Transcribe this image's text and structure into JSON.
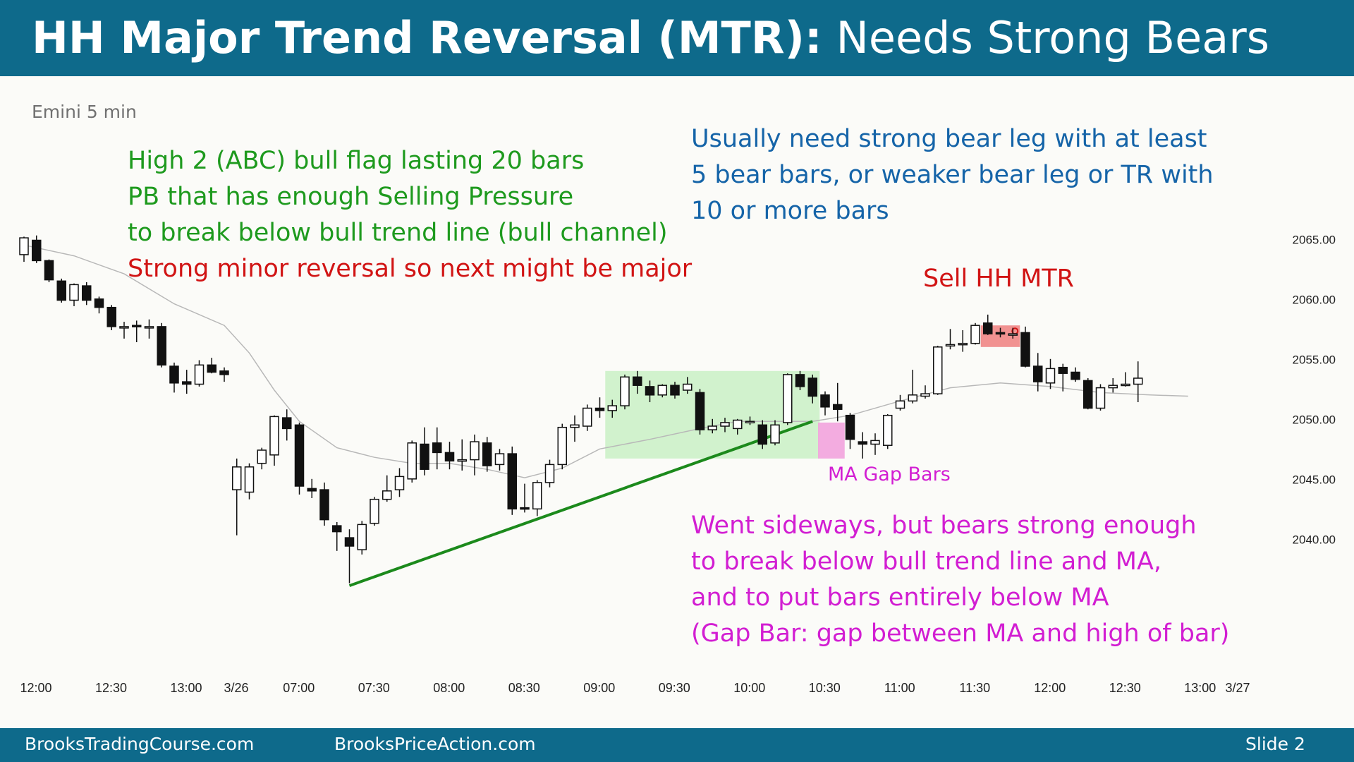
{
  "slide": {
    "title_bold": "HH Major Trend Reversal (MTR):",
    "title_rest": " Needs Strong Bears",
    "footer_left": "BrooksTradingCourse.com",
    "footer_mid": "BrooksPriceAction.com",
    "footer_right": "Slide  2",
    "colors": {
      "header": "#0e6a8b",
      "green_note": "#1e9a1e",
      "red_note": "#d11414",
      "blue_note": "#1564a8",
      "magenta_note": "#d21ed2"
    }
  },
  "annotations": {
    "green_lines": [
      "High 2 (ABC) bull flag lasting 20 bars",
      "PB that has enough Selling Pressure",
      "to break below bull trend line (bull channel)"
    ],
    "red_line": "Strong minor reversal so next might be major",
    "blue_lines": [
      "Usually need strong bear leg with at least",
      "5 bear bars, or weaker bear leg or TR with",
      "10 or more bars"
    ],
    "sell_label": "Sell HH MTR",
    "gap_label": "MA Gap Bars",
    "magenta_lines": [
      "Went sideways, but bears strong enough",
      "to break below bull trend line and MA,",
      "and to put bars entirely below MA",
      "(Gap Bar: gap between MA and high of bar)"
    ]
  },
  "chart_data": {
    "type": "candlestick",
    "title": "Emini 5 min",
    "ylim": [
      2035.5,
      2067.5
    ],
    "y_ticks": [
      2040,
      2045,
      2050,
      2055,
      2060,
      2065
    ],
    "y_tick_labels": [
      "2040.00",
      "2045.00",
      "2050.00",
      "2055.00",
      "2060.00",
      "2065.00"
    ],
    "x_tick_labels": [
      {
        "bar": 0,
        "label": "12:00"
      },
      {
        "bar": 6,
        "label": "12:30"
      },
      {
        "bar": 12,
        "label": "13:00"
      },
      {
        "bar": 16,
        "label": "3/26"
      },
      {
        "bar": 21,
        "label": "07:00"
      },
      {
        "bar": 27,
        "label": "07:30"
      },
      {
        "bar": 33,
        "label": "08:00"
      },
      {
        "bar": 39,
        "label": "08:30"
      },
      {
        "bar": 45,
        "label": "09:00"
      },
      {
        "bar": 51,
        "label": "09:30"
      },
      {
        "bar": 57,
        "label": "10:00"
      },
      {
        "bar": 63,
        "label": "10:30"
      },
      {
        "bar": 69,
        "label": "11:00"
      },
      {
        "bar": 75,
        "label": "11:30"
      },
      {
        "bar": 81,
        "label": "12:00"
      },
      {
        "bar": 87,
        "label": "12:30"
      },
      {
        "bar": 93,
        "label": "13:00"
      },
      {
        "bar": 96,
        "label": "3/27"
      }
    ],
    "bars_ohlc": [
      [
        2063.8,
        2065.3,
        2063.2,
        2065.2
      ],
      [
        2065.0,
        2065.4,
        2063.1,
        2063.3
      ],
      [
        2063.3,
        2063.4,
        2061.5,
        2061.7
      ],
      [
        2061.6,
        2061.8,
        2059.8,
        2060.0
      ],
      [
        2060.0,
        2061.4,
        2059.5,
        2061.3
      ],
      [
        2061.2,
        2061.5,
        2059.6,
        2060.0
      ],
      [
        2060.1,
        2060.3,
        2058.9,
        2059.4
      ],
      [
        2059.4,
        2059.6,
        2057.5,
        2057.8
      ],
      [
        2057.8,
        2058.2,
        2056.8,
        2057.8
      ],
      [
        2057.9,
        2058.3,
        2056.5,
        2057.8
      ],
      [
        2057.8,
        2058.4,
        2056.8,
        2057.8
      ],
      [
        2057.8,
        2058.1,
        2054.4,
        2054.6
      ],
      [
        2054.5,
        2054.8,
        2052.3,
        2053.1
      ],
      [
        2053.2,
        2054.2,
        2052.2,
        2053.0
      ],
      [
        2053.0,
        2055.0,
        2052.8,
        2054.6
      ],
      [
        2054.6,
        2055.2,
        2053.9,
        2054.0
      ],
      [
        2054.1,
        2054.4,
        2053.2,
        2053.8
      ],
      [
        2044.2,
        2046.8,
        2040.4,
        2046.1
      ],
      [
        2044.0,
        2046.4,
        2043.4,
        2046.1
      ],
      [
        2046.4,
        2047.7,
        2045.9,
        2047.5
      ],
      [
        2047.1,
        2050.4,
        2046.2,
        2050.3
      ],
      [
        2050.2,
        2050.9,
        2048.3,
        2049.3
      ],
      [
        2049.6,
        2049.8,
        2043.8,
        2044.5
      ],
      [
        2044.3,
        2045.1,
        2043.5,
        2044.1
      ],
      [
        2044.2,
        2044.8,
        2041.2,
        2041.7
      ],
      [
        2041.2,
        2041.5,
        2039.1,
        2040.7
      ],
      [
        2040.2,
        2040.9,
        2036.4,
        2039.5
      ],
      [
        2039.2,
        2041.6,
        2038.8,
        2041.3
      ],
      [
        2041.4,
        2043.6,
        2041.2,
        2043.4
      ],
      [
        2043.4,
        2045.4,
        2043.2,
        2044.1
      ],
      [
        2044.2,
        2046.0,
        2043.6,
        2045.3
      ],
      [
        2045.1,
        2048.3,
        2044.8,
        2048.1
      ],
      [
        2048.0,
        2049.4,
        2045.4,
        2045.9
      ],
      [
        2048.1,
        2049.4,
        2045.9,
        2047.3
      ],
      [
        2047.3,
        2048.2,
        2045.9,
        2046.6
      ],
      [
        2046.6,
        2048.4,
        2045.8,
        2046.7
      ],
      [
        2046.7,
        2048.8,
        2045.4,
        2048.2
      ],
      [
        2048.1,
        2048.6,
        2045.7,
        2046.2
      ],
      [
        2046.3,
        2047.6,
        2045.8,
        2047.2
      ],
      [
        2047.2,
        2047.8,
        2042.1,
        2042.6
      ],
      [
        2042.7,
        2044.7,
        2042.3,
        2042.6
      ],
      [
        2042.6,
        2045.0,
        2042.0,
        2044.8
      ],
      [
        2044.8,
        2046.7,
        2044.4,
        2046.3
      ],
      [
        2046.3,
        2049.7,
        2045.9,
        2049.4
      ],
      [
        2049.4,
        2050.4,
        2048.2,
        2049.6
      ],
      [
        2049.5,
        2051.3,
        2049.1,
        2051.0
      ],
      [
        2051.0,
        2051.9,
        2050.2,
        2050.8
      ],
      [
        2050.8,
        2051.7,
        2050.2,
        2051.2
      ],
      [
        2051.2,
        2053.8,
        2050.9,
        2053.6
      ],
      [
        2053.6,
        2054.1,
        2052.2,
        2052.9
      ],
      [
        2052.8,
        2053.3,
        2051.5,
        2052.1
      ],
      [
        2052.1,
        2053.0,
        2051.9,
        2052.9
      ],
      [
        2052.9,
        2053.2,
        2051.8,
        2052.1
      ],
      [
        2052.5,
        2053.6,
        2052.2,
        2053.0
      ],
      [
        2052.3,
        2052.6,
        2048.8,
        2049.2
      ],
      [
        2049.2,
        2050.1,
        2048.9,
        2049.5
      ],
      [
        2049.5,
        2050.2,
        2049.0,
        2049.8
      ],
      [
        2049.3,
        2050.1,
        2048.8,
        2050.0
      ],
      [
        2049.9,
        2050.3,
        2049.6,
        2049.9
      ],
      [
        2049.6,
        2050.0,
        2047.6,
        2048.0
      ],
      [
        2048.1,
        2050.0,
        2047.9,
        2049.6
      ],
      [
        2049.8,
        2053.9,
        2049.6,
        2053.8
      ],
      [
        2053.8,
        2054.1,
        2052.5,
        2052.8
      ],
      [
        2053.5,
        2053.8,
        2051.4,
        2052.0
      ],
      [
        2052.1,
        2052.4,
        2050.4,
        2051.1
      ],
      [
        2051.3,
        2053.1,
        2049.9,
        2050.9
      ],
      [
        2050.4,
        2050.6,
        2047.6,
        2048.4
      ],
      [
        2048.2,
        2049.0,
        2046.8,
        2048.0
      ],
      [
        2048.0,
        2048.9,
        2047.1,
        2048.3
      ],
      [
        2047.9,
        2050.5,
        2047.6,
        2050.4
      ],
      [
        2051.0,
        2052.1,
        2050.8,
        2051.6
      ],
      [
        2051.6,
        2054.2,
        2051.4,
        2052.1
      ],
      [
        2052.0,
        2052.9,
        2051.8,
        2052.2
      ],
      [
        2052.2,
        2056.2,
        2052.1,
        2056.1
      ],
      [
        2056.2,
        2057.6,
        2055.9,
        2056.3
      ],
      [
        2056.3,
        2057.5,
        2055.7,
        2056.4
      ],
      [
        2056.4,
        2058.1,
        2056.3,
        2057.9
      ],
      [
        2058.1,
        2058.8,
        2057.1,
        2057.2
      ],
      [
        2057.3,
        2057.7,
        2056.9,
        2057.2
      ],
      [
        2057.2,
        2057.7,
        2056.8,
        2057.2
      ],
      [
        2057.3,
        2057.8,
        2054.4,
        2054.5
      ],
      [
        2054.5,
        2055.6,
        2052.4,
        2053.2
      ],
      [
        2053.1,
        2055.1,
        2052.6,
        2054.3
      ],
      [
        2054.4,
        2054.7,
        2052.4,
        2053.9
      ],
      [
        2054.0,
        2054.4,
        2053.2,
        2053.4
      ],
      [
        2053.3,
        2053.5,
        2050.9,
        2051.0
      ],
      [
        2051.0,
        2053.0,
        2050.8,
        2052.7
      ],
      [
        2052.7,
        2053.5,
        2052.3,
        2052.9
      ],
      [
        2052.9,
        2054.0,
        2052.8,
        2053.0
      ],
      [
        2053.0,
        2054.9,
        2051.5,
        2053.5
      ]
    ],
    "moving_average": [
      [
        0,
        2064.6
      ],
      [
        4,
        2063.7
      ],
      [
        8,
        2062.2
      ],
      [
        12,
        2059.7
      ],
      [
        16,
        2057.9
      ],
      [
        18,
        2055.6
      ],
      [
        20,
        2052.5
      ],
      [
        22,
        2049.9
      ],
      [
        25,
        2047.7
      ],
      [
        28,
        2046.9
      ],
      [
        31,
        2046.4
      ],
      [
        34,
        2046.4
      ],
      [
        37,
        2045.9
      ],
      [
        40,
        2045.2
      ],
      [
        43,
        2046.0
      ],
      [
        46,
        2047.6
      ],
      [
        50,
        2048.4
      ],
      [
        54,
        2049.3
      ],
      [
        57,
        2049.9
      ],
      [
        60,
        2049.9
      ],
      [
        63,
        2049.9
      ],
      [
        66,
        2050.4
      ],
      [
        70,
        2051.6
      ],
      [
        74,
        2052.7
      ],
      [
        78,
        2053.1
      ],
      [
        82,
        2052.8
      ],
      [
        86,
        2052.3
      ],
      [
        90,
        2052.1
      ],
      [
        93,
        2052.0
      ]
    ],
    "trend_line": [
      [
        26,
        2036.2
      ],
      [
        63,
        2049.9
      ]
    ],
    "bull_flag_range": {
      "from_bar": 47,
      "to_bar": 63,
      "low": 2046.8,
      "high": 2054.1
    },
    "ma_gap_bars": {
      "from_bar": 64,
      "to_bar": 65,
      "low": 2046.8,
      "high": 2049.8
    },
    "sell_signal_bars": {
      "from_bar": 77,
      "to_bar": 79,
      "low": 2056.1,
      "high": 2057.9
    }
  }
}
